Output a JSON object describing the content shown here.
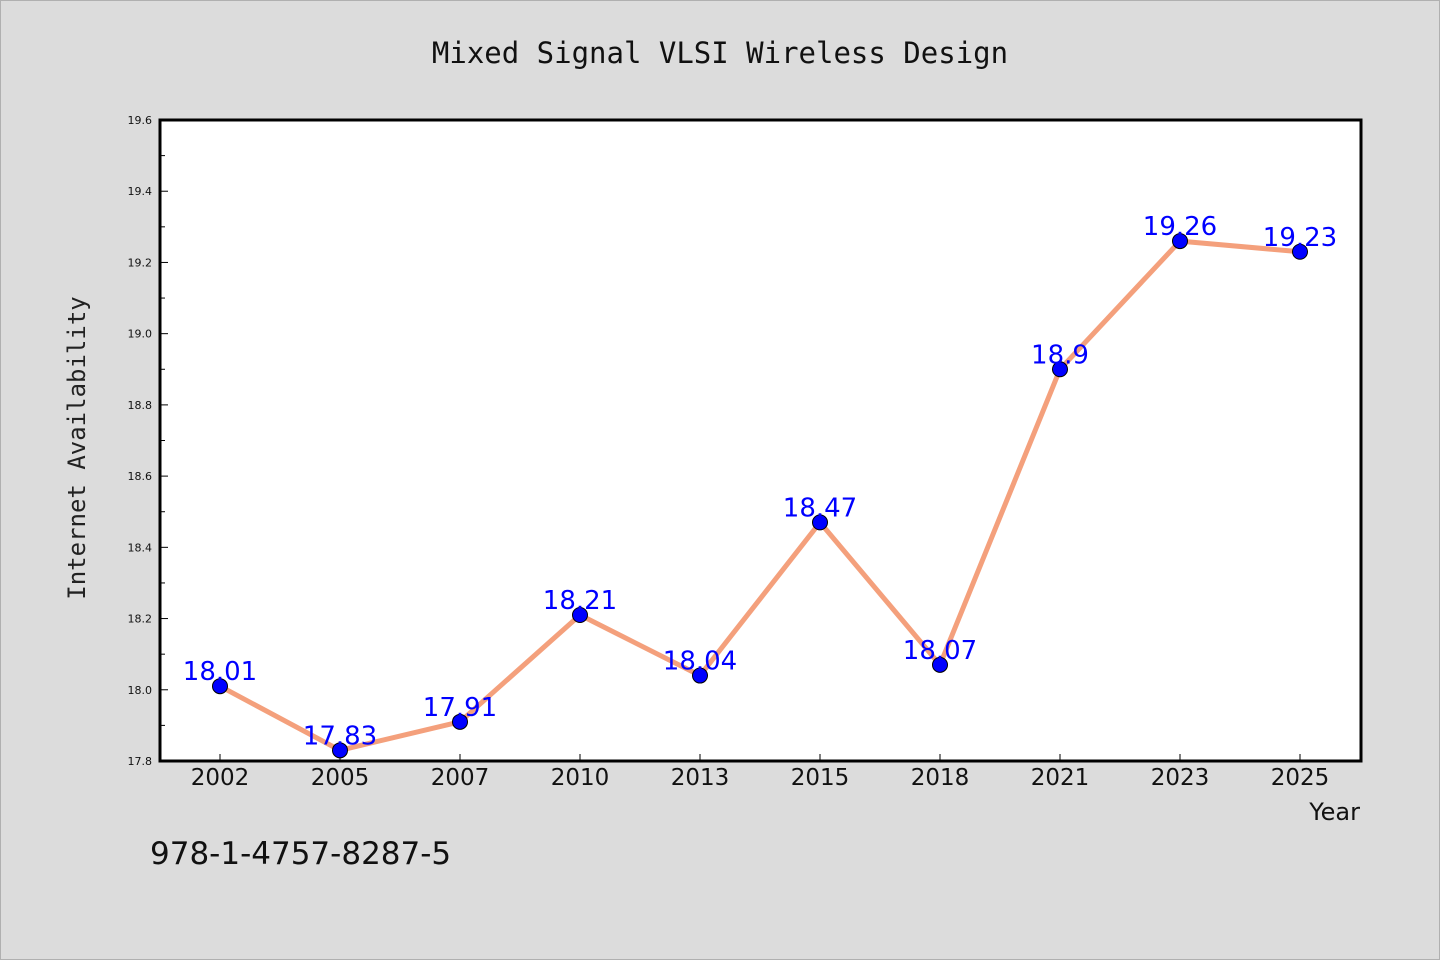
{
  "chart_data": {
    "type": "line",
    "title": "Mixed Signal VLSI Wireless Design",
    "xlabel": "Year",
    "ylabel": "Internet Availability",
    "categories": [
      "2002",
      "2005",
      "2007",
      "2010",
      "2013",
      "2015",
      "2018",
      "2021",
      "2023",
      "2025"
    ],
    "series": [
      {
        "values": [
          18.01,
          17.83,
          17.91,
          18.21,
          18.04,
          18.47,
          18.07,
          18.9,
          19.26,
          19.23
        ],
        "labels": [
          "18.01",
          "17.83",
          "17.91",
          "18.21",
          "18.04",
          "18.47",
          "18.07",
          "18.9",
          "19.26",
          "19.23"
        ],
        "line_color": "#f4a07c",
        "marker_color": "#0000ff"
      }
    ],
    "ylim": [
      17.8,
      19.6
    ],
    "yticks": [
      "17.8",
      "18.0",
      "18.2",
      "18.4",
      "18.6",
      "18.8",
      "19.0",
      "19.2",
      "19.4",
      "19.6"
    ],
    "grid": false,
    "legend": "none"
  },
  "annotation": {
    "isbn": "978-1-4757-8287-5"
  },
  "colors": {
    "background": "#dcdcdc",
    "plot_background": "#ffffff",
    "label_color": "#0000ff"
  }
}
